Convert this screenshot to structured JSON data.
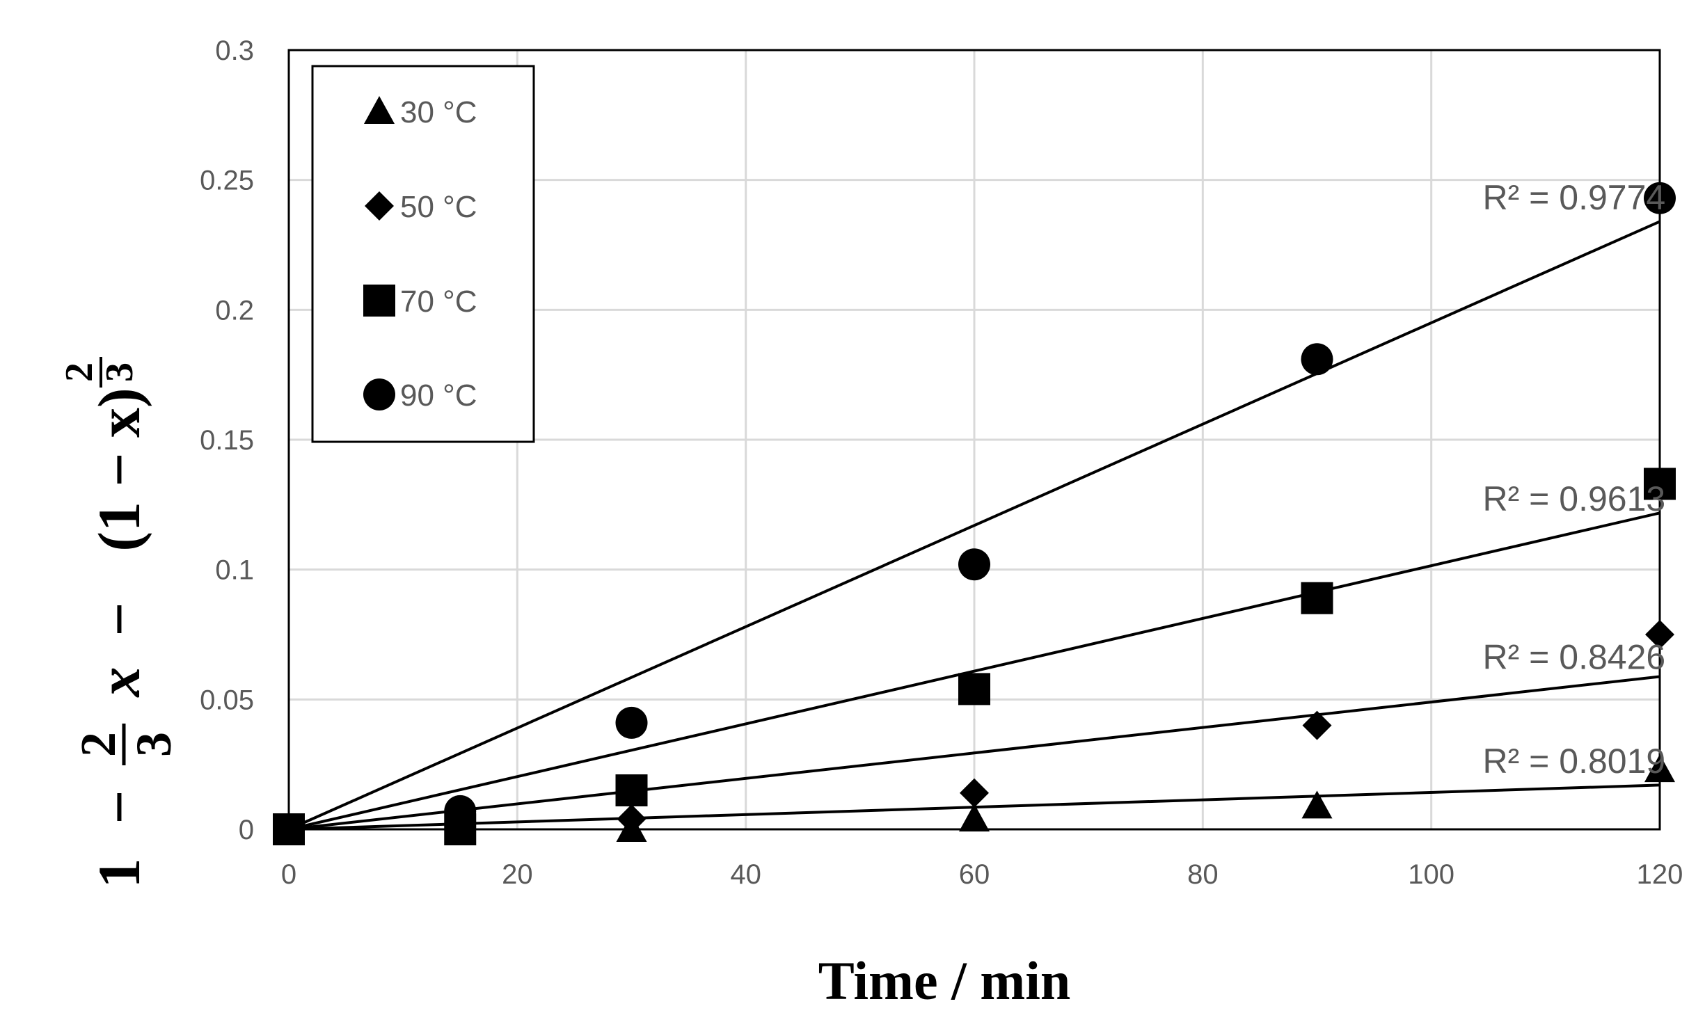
{
  "chart_data": {
    "type": "scatter",
    "title": "",
    "xlabel": "Time / min",
    "ylabel": "1 − 2/3·x − (1 − x)^(2/3)",
    "ylabel_parts": {
      "one": "1",
      "minus1": "−",
      "frac_num": "2",
      "frac_den": "3",
      "x1": "x",
      "minus2": "−",
      "paren": "(1 − x)",
      "exp_num": "2",
      "exp_den": "3"
    },
    "xlim": [
      0,
      120
    ],
    "ylim": [
      0,
      0.3
    ],
    "x_ticks": [
      0,
      20,
      40,
      60,
      80,
      100,
      120
    ],
    "x_tick_labels": [
      "0",
      "20",
      "40",
      "60",
      "80",
      "100",
      "120"
    ],
    "y_ticks": [
      0,
      0.05,
      0.1,
      0.15,
      0.2,
      0.25,
      0.3
    ],
    "y_tick_labels": [
      "0",
      "0.05",
      "0.1",
      "0.15",
      "0.2",
      "0.25",
      "0.3"
    ],
    "grid": true,
    "legend_position": "top-left",
    "series": [
      {
        "name": "30 °C",
        "marker": "triangle",
        "x": [
          0,
          15,
          30,
          60,
          90,
          120
        ],
        "y": [
          0,
          0,
          0,
          0.004,
          0.009,
          0.023
        ],
        "trend_slope": 0.000142,
        "r2_label": "R² = 0.8019",
        "r2_x": 104.5,
        "r2_y": 0.0265
      },
      {
        "name": "50 °C",
        "marker": "diamond",
        "x": [
          0,
          15,
          30,
          60,
          90,
          120
        ],
        "y": [
          0,
          0.001,
          0.004,
          0.014,
          0.04,
          0.075
        ],
        "trend_slope": 0.00049,
        "r2_label": "R² = 0.8426",
        "r2_x": 104.5,
        "r2_y": 0.0665
      },
      {
        "name": "70 °C",
        "marker": "square",
        "x": [
          0,
          15,
          30,
          60,
          90,
          120
        ],
        "y": [
          0,
          0,
          0.015,
          0.054,
          0.089,
          0.133
        ],
        "trend_slope": 0.001015,
        "r2_label": "R² = 0.9613",
        "r2_x": 104.5,
        "r2_y": 0.1275
      },
      {
        "name": "90 °C",
        "marker": "circle",
        "x": [
          0,
          15,
          30,
          60,
          90,
          120
        ],
        "y": [
          0,
          0.007,
          0.041,
          0.102,
          0.181,
          0.243
        ],
        "trend_slope": 0.00195,
        "r2_label": "R² = 0.9774",
        "r2_x": 104.5,
        "r2_y": 0.2435
      }
    ]
  }
}
